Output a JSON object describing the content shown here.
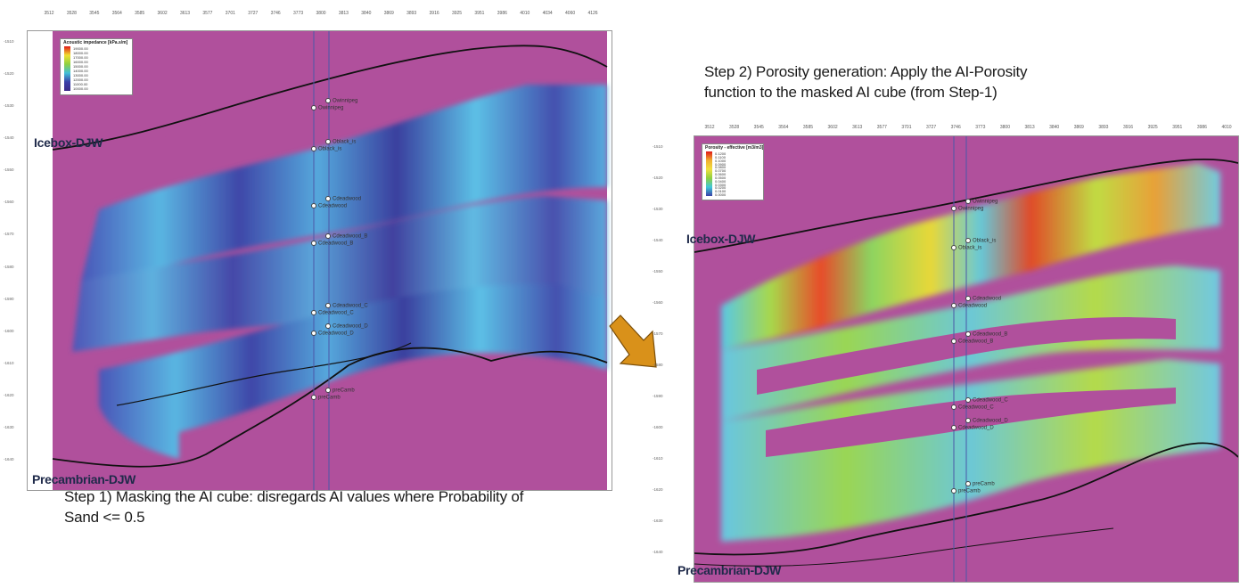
{
  "step1": {
    "caption_line1": "Step 1) Masking the AI cube: disregards AI values where Probability of",
    "caption_line2": "Sand <= 0.5",
    "legend_title": "Acoustic impedance [kPa.s/m]",
    "legend_values": [
      "19000.00",
      "18000.00",
      "17000.00",
      "16000.00",
      "15000.00",
      "14000.00",
      "13000.00",
      "12000.00",
      "11000.00",
      "10000.00"
    ],
    "horizon_top": "Icebox-DJW",
    "horizon_bottom": "Precambrian-DJW",
    "markers": [
      "Owinnipeg",
      "Owinnipeg",
      "Oblack_is",
      "Oblack_is",
      "Cdeadwood",
      "Cdeadwood",
      "Cdeadwood_B",
      "Cdeadwood_B",
      "Cdeadwood_C",
      "Cdeadwood_C",
      "Cdeadwood_D",
      "Cdeadwood_D",
      "preCamb",
      "preCamb"
    ],
    "top_ticks": [
      "3512",
      "3528",
      "3545",
      "3564",
      "3585",
      "3602",
      "3613",
      "3577",
      "3701",
      "3727",
      "3746",
      "3773",
      "3800",
      "3813",
      "3840",
      "3869",
      "3893",
      "3916",
      "3925",
      "3951",
      "3986",
      "4010",
      "4034",
      "4060",
      "4126"
    ],
    "depth_ticks": [
      "-1510",
      "-1520",
      "-1530",
      "-1540",
      "-1550",
      "-1560",
      "-1570",
      "-1580",
      "-1590",
      "-1600",
      "-1610",
      "-1620",
      "-1630",
      "-1640"
    ]
  },
  "step2": {
    "caption_line1": "Step 2) Porosity generation: Apply the AI-Porosity",
    "caption_line2": "function to the masked AI cube (from Step-1)",
    "legend_title": "Porosity - effective [m3/m3]",
    "legend_values": [
      "0.1200",
      "0.1100",
      "0.1000",
      "0.0900",
      "0.0800",
      "0.0700",
      "0.0600",
      "0.0500",
      "0.0400",
      "0.0300",
      "0.0200",
      "0.0100",
      "0.0000"
    ],
    "horizon_top": "Icebox-DJW",
    "horizon_bottom": "Precambrian-DJW",
    "markers": [
      "Owinnipeg",
      "Owinnipeg",
      "Oblack_is",
      "Oblack_is",
      "Cdeadwood",
      "Cdeadwood",
      "Cdeadwood_B",
      "Cdeadwood_B",
      "Cdeadwood_C",
      "Cdeadwood_C",
      "Cdeadwood_D",
      "Cdeadwood_D",
      "preCamb",
      "preCamb"
    ],
    "top_ticks": [
      "3512",
      "3528",
      "3545",
      "3564",
      "3585",
      "3602",
      "3613",
      "3577",
      "3701",
      "3727",
      "3746",
      "3773",
      "3800",
      "3813",
      "3840",
      "3869",
      "3893",
      "3916",
      "3925",
      "3951",
      "3986",
      "4010",
      "4034",
      "4060",
      "4126"
    ],
    "depth_ticks": [
      "-1510",
      "-1520",
      "-1530",
      "-1540",
      "-1550",
      "-1560",
      "-1570",
      "-1580",
      "-1590",
      "-1600",
      "-1610",
      "-1620",
      "-1630",
      "-1640"
    ]
  },
  "colors": {
    "mask": "#b0509c",
    "ai_low": "#3b3ba0",
    "ai_mid": "#4fb8e0",
    "por_high": "#e02020",
    "por_mid": "#9fd43a",
    "arrow": "#d9911a",
    "horizon": "#111111"
  }
}
